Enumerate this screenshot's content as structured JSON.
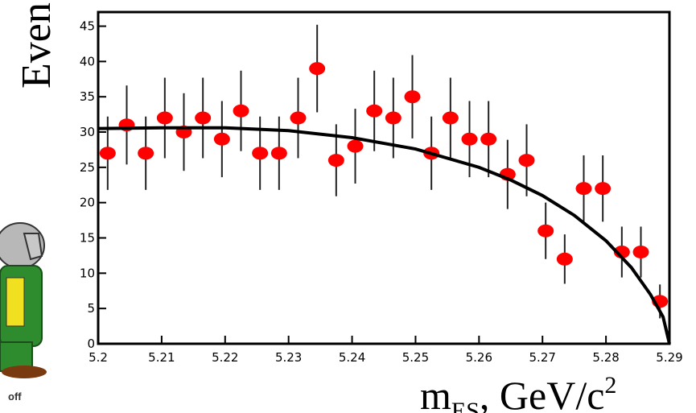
{
  "chart_data": {
    "type": "errorbar",
    "y_label": "Even",
    "x_label": {
      "main": "m",
      "sub": "ES",
      "rest": ", GeV/c",
      "sup": "2"
    },
    "logo_text": "off",
    "xlim": [
      5.2,
      5.29
    ],
    "ylim": [
      0,
      47
    ],
    "xticks": [
      5.2,
      5.21,
      5.22,
      5.23,
      5.24,
      5.25,
      5.26,
      5.27,
      5.28,
      5.29
    ],
    "yticks": [
      0,
      5,
      10,
      15,
      20,
      25,
      30,
      35,
      40,
      45
    ],
    "series": [
      {
        "color": "#ff0000",
        "x": [
          5.2015,
          5.2045,
          5.2075,
          5.2105,
          5.2135,
          5.2165,
          5.2195,
          5.2225,
          5.2255,
          5.2285,
          5.2315,
          5.2345,
          5.2375,
          5.2405,
          5.2435,
          5.2465,
          5.2495,
          5.2525,
          5.2555,
          5.2585,
          5.2615,
          5.2645,
          5.2675,
          5.2705,
          5.2735,
          5.2765,
          5.2795,
          5.2825,
          5.2855,
          5.2885
        ],
        "values": [
          27,
          31,
          27,
          32,
          30,
          32,
          29,
          33,
          27,
          27,
          32,
          39,
          26,
          28,
          33,
          32,
          35,
          27,
          32,
          29,
          29,
          24,
          26,
          16,
          12,
          22,
          22,
          13,
          13,
          6
        ],
        "errors": [
          5.2,
          5.6,
          5.2,
          5.7,
          5.5,
          5.7,
          5.4,
          5.7,
          5.2,
          5.2,
          5.7,
          6.2,
          5.1,
          5.3,
          5.7,
          5.7,
          5.9,
          5.2,
          5.7,
          5.4,
          5.4,
          4.9,
          5.1,
          4.0,
          3.5,
          4.7,
          4.7,
          3.6,
          3.6,
          2.4
        ]
      },
      {
        "color": "#000000",
        "line": true,
        "x": [
          5.2,
          5.21,
          5.22,
          5.23,
          5.24,
          5.25,
          5.26,
          5.265,
          5.27,
          5.275,
          5.28,
          5.284,
          5.287,
          5.289,
          5.29
        ],
        "values": [
          30.5,
          30.6,
          30.6,
          30.2,
          29.2,
          27.6,
          25,
          23.2,
          21,
          18.2,
          14.6,
          10.8,
          7,
          3.8,
          0
        ]
      }
    ]
  }
}
